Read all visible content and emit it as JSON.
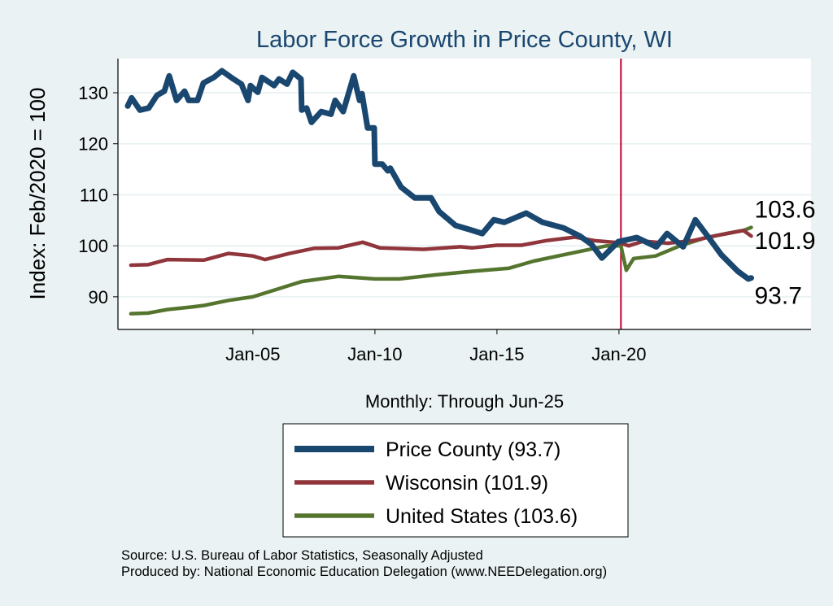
{
  "chart_data": {
    "type": "line",
    "title": "Labor Force Growth in Price  County, WI",
    "xlabel": "Monthly: Through Jun-25",
    "ylabel": "Index: Feb/2020 = 100",
    "xlim": [
      1999.47,
      2027.87
    ],
    "ylim": [
      83.6,
      136.7
    ],
    "yticks": [
      90,
      100,
      110,
      120,
      130
    ],
    "xticks": [
      {
        "value": 2005,
        "label": "Jan-05"
      },
      {
        "value": 2010,
        "label": "Jan-10"
      },
      {
        "value": 2015,
        "label": "Jan-15"
      },
      {
        "value": 2020,
        "label": "Jan-20"
      }
    ],
    "grid": true,
    "reference_line": {
      "x": 2020.08,
      "color": "#c10534"
    },
    "legend_position": "bottom",
    "series": [
      {
        "name": "Price  County (93.7)",
        "color": "#1a476f",
        "end_label": "93.7",
        "width": 7,
        "points": [
          [
            1999.87,
            127.4
          ],
          [
            2000.03,
            129
          ],
          [
            2000.37,
            126.6
          ],
          [
            2000.73,
            127
          ],
          [
            2001.07,
            129.5
          ],
          [
            2001.37,
            130.3
          ],
          [
            2001.57,
            133.3
          ],
          [
            2001.87,
            128.5
          ],
          [
            2002.2,
            130.3
          ],
          [
            2002.37,
            128.5
          ],
          [
            2002.73,
            128.5
          ],
          [
            2002.97,
            131.9
          ],
          [
            2003.4,
            133
          ],
          [
            2003.73,
            134.3
          ],
          [
            2004.2,
            132.7
          ],
          [
            2004.53,
            131.7
          ],
          [
            2004.8,
            128.5
          ],
          [
            2004.9,
            131.4
          ],
          [
            2005.2,
            130.1
          ],
          [
            2005.37,
            133
          ],
          [
            2005.87,
            131.4
          ],
          [
            2006.07,
            132.7
          ],
          [
            2006.4,
            131.7
          ],
          [
            2006.63,
            134
          ],
          [
            2006.97,
            132.7
          ],
          [
            2007.0,
            126.6
          ],
          [
            2007.2,
            127
          ],
          [
            2007.4,
            124.2
          ],
          [
            2007.8,
            126.3
          ],
          [
            2008.2,
            125.8
          ],
          [
            2008.37,
            128.5
          ],
          [
            2008.7,
            126.3
          ],
          [
            2009.13,
            133.3
          ],
          [
            2009.37,
            128.5
          ],
          [
            2009.47,
            129.8
          ],
          [
            2009.7,
            123.1
          ],
          [
            2009.97,
            123.1
          ],
          [
            2010.0,
            116
          ],
          [
            2010.3,
            116
          ],
          [
            2010.53,
            114.7
          ],
          [
            2010.63,
            115.2
          ],
          [
            2011.07,
            111.5
          ],
          [
            2011.63,
            109.4
          ],
          [
            2012.3,
            109.4
          ],
          [
            2012.63,
            106.7
          ],
          [
            2013.3,
            104
          ],
          [
            2013.87,
            103.2
          ],
          [
            2014.4,
            102.4
          ],
          [
            2014.87,
            105.1
          ],
          [
            2015.3,
            104.6
          ],
          [
            2016.2,
            106.4
          ],
          [
            2016.87,
            104.6
          ],
          [
            2017.73,
            103.5
          ],
          [
            2018.4,
            101.9
          ],
          [
            2018.87,
            100.3
          ],
          [
            2019.3,
            97.6
          ],
          [
            2019.97,
            100.8
          ],
          [
            2020.73,
            101.6
          ],
          [
            2021.53,
            99.8
          ],
          [
            2021.97,
            102.4
          ],
          [
            2022.63,
            99.8
          ],
          [
            2023.13,
            105.1
          ],
          [
            2023.63,
            101.9
          ],
          [
            2024.2,
            98.2
          ],
          [
            2024.87,
            95
          ],
          [
            2025.3,
            93.5
          ],
          [
            2025.42,
            93.7
          ]
        ]
      },
      {
        "name": "Wisconsin (101.9)",
        "color": "#90353b",
        "end_label": "101.9",
        "width": 4.5,
        "points": [
          [
            2000,
            96.2
          ],
          [
            2000.7,
            96.3
          ],
          [
            2001.5,
            97.3
          ],
          [
            2003,
            97.2
          ],
          [
            2004,
            98.5
          ],
          [
            2004.6,
            98.2
          ],
          [
            2005,
            98
          ],
          [
            2005.5,
            97.3
          ],
          [
            2006.5,
            98.5
          ],
          [
            2007.5,
            99.5
          ],
          [
            2008.5,
            99.6
          ],
          [
            2009.5,
            100.7
          ],
          [
            2010.2,
            99.6
          ],
          [
            2012,
            99.3
          ],
          [
            2013.5,
            99.8
          ],
          [
            2014,
            99.6
          ],
          [
            2015,
            100.1
          ],
          [
            2016,
            100.1
          ],
          [
            2017,
            101
          ],
          [
            2018.2,
            101.7
          ],
          [
            2019,
            101
          ],
          [
            2020,
            100.6
          ],
          [
            2020.4,
            100
          ],
          [
            2021,
            100.9
          ],
          [
            2022,
            100.5
          ],
          [
            2023,
            101
          ],
          [
            2024,
            102
          ],
          [
            2025.1,
            103
          ],
          [
            2025.42,
            101.9
          ]
        ]
      },
      {
        "name": "United States (103.6)",
        "color": "#55752f",
        "end_label": "103.6",
        "width": 4.5,
        "points": [
          [
            2000,
            86.7
          ],
          [
            2000.7,
            86.8
          ],
          [
            2001.5,
            87.5
          ],
          [
            2002.5,
            88
          ],
          [
            2003,
            88.3
          ],
          [
            2004,
            89.3
          ],
          [
            2005,
            90
          ],
          [
            2006,
            91.5
          ],
          [
            2007,
            93
          ],
          [
            2008.5,
            94
          ],
          [
            2010,
            93.5
          ],
          [
            2011,
            93.5
          ],
          [
            2012.5,
            94.3
          ],
          [
            2014,
            95
          ],
          [
            2015.5,
            95.6
          ],
          [
            2016.5,
            97
          ],
          [
            2017.5,
            98
          ],
          [
            2018.5,
            99
          ],
          [
            2019.5,
            100
          ],
          [
            2020.08,
            100
          ],
          [
            2020.3,
            95.2
          ],
          [
            2020.6,
            97.5
          ],
          [
            2021.5,
            98
          ],
          [
            2022.5,
            100
          ],
          [
            2023.5,
            101.5
          ],
          [
            2024.5,
            102.5
          ],
          [
            2025.1,
            103
          ],
          [
            2025.42,
            103.6
          ]
        ]
      }
    ]
  },
  "footer": {
    "source": "Source: U.S. Bureau of Labor Statistics, Seasonally Adjusted",
    "produced": "Produced by: National Economic Education Delegation (www.NEEDelegation.org)"
  }
}
